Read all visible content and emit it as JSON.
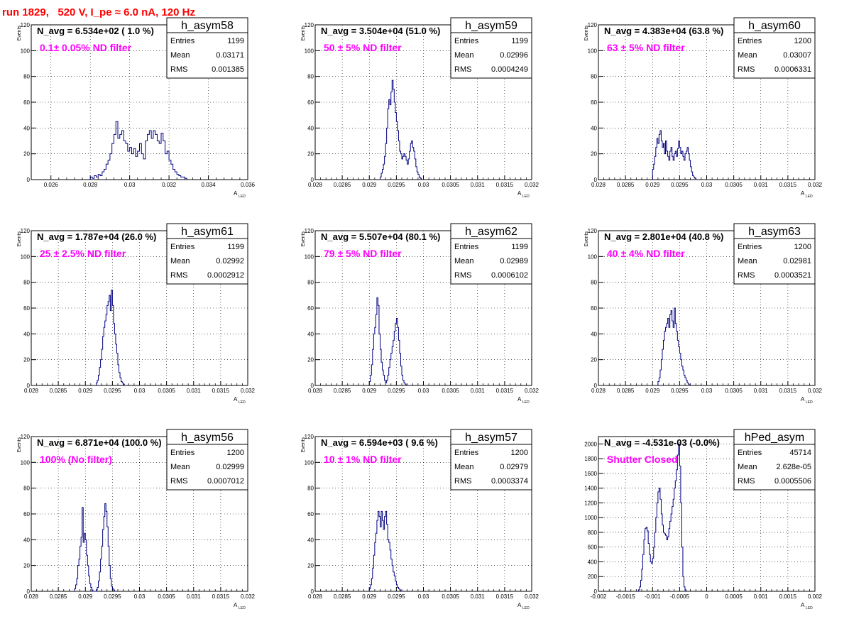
{
  "run_title": "run 1829,   520 V, I_pe ≈ 6.0 nA, 120 Hz",
  "colors": {
    "title": "#ff0000",
    "annotation": "#ff00ff",
    "histogram": "#000080",
    "grid": "#000000",
    "text": "#000000"
  },
  "chart_data": [
    {
      "type": "histogram",
      "name": "h_asym58",
      "navg": "N_avg = 6.534e+02 ( 1.0 %)",
      "annotation": "0.1± 0.05% ND filter",
      "stats": {
        "entries_label": "Entries",
        "entries": "1199",
        "mean_label": "Mean",
        "mean": "0.03171",
        "rms_label": "RMS",
        "rms": "0.001385"
      },
      "ylabel": "Events",
      "xlabel": "A",
      "xlabel_sub": "LED",
      "xlim": [
        0.025,
        0.036
      ],
      "ylim": [
        0,
        120
      ],
      "xticks": [
        0.026,
        0.028,
        0.03,
        0.032,
        0.034,
        0.036
      ],
      "xticklabels": [
        "0.026",
        "0.028",
        "0.03",
        "0.032",
        "0.034",
        "0.036"
      ],
      "yticks": [
        0,
        20,
        40,
        60,
        80,
        100,
        120
      ],
      "yticklabels": [
        "0",
        "20",
        "40",
        "60",
        "80",
        "100",
        "120"
      ],
      "grid": true,
      "bin_start": 0.028,
      "bin_width": 0.0001,
      "values": [
        2,
        1,
        3,
        2,
        4,
        3,
        6,
        8,
        12,
        15,
        20,
        28,
        35,
        45,
        32,
        35,
        38,
        30,
        28,
        22,
        25,
        20,
        24,
        18,
        22,
        28,
        20,
        16,
        30,
        35,
        38,
        32,
        38,
        35,
        30,
        28,
        36,
        30,
        20,
        22,
        15,
        12,
        8,
        6,
        4,
        3,
        2,
        2,
        1
      ]
    },
    {
      "type": "histogram",
      "name": "h_asym59",
      "navg": "N_avg = 3.504e+04 (51.0 %)",
      "annotation": "50 ± 5% ND filter",
      "stats": {
        "entries_label": "Entries",
        "entries": "1199",
        "mean_label": "Mean",
        "mean": "0.02996",
        "rms_label": "RMS",
        "rms": "0.0004249"
      },
      "ylabel": "Events",
      "xlabel": "A",
      "xlabel_sub": "LED",
      "xlim": [
        0.028,
        0.032
      ],
      "ylim": [
        0,
        120
      ],
      "xticks": [
        0.028,
        0.0285,
        0.029,
        0.0295,
        0.03,
        0.0305,
        0.031,
        0.0315,
        0.032
      ],
      "xticklabels": [
        "0.028",
        "0.0285",
        "0.029",
        "0.0295",
        "0.03",
        "0.0305",
        "0.031",
        "0.0315",
        "0.032"
      ],
      "yticks": [
        0,
        20,
        40,
        60,
        80,
        100,
        120
      ],
      "yticklabels": [
        "0",
        "20",
        "40",
        "60",
        "80",
        "100",
        "120"
      ],
      "grid": true,
      "bin_start": 0.0292,
      "bin_width": 2e-05,
      "values": [
        2,
        5,
        8,
        12,
        18,
        28,
        40,
        55,
        62,
        58,
        68,
        77,
        70,
        60,
        52,
        45,
        38,
        30,
        22,
        20,
        16,
        18,
        20,
        18,
        15,
        12,
        16,
        22,
        28,
        30,
        25,
        22,
        16,
        10,
        6,
        4,
        2,
        1
      ]
    },
    {
      "type": "histogram",
      "name": "h_asym60",
      "navg": "N_avg = 4.383e+04 (63.8 %)",
      "annotation": "63 ± 5% ND filter",
      "stats": {
        "entries_label": "Entries",
        "entries": "1200",
        "mean_label": "Mean",
        "mean": "0.03007",
        "rms_label": "RMS",
        "rms": "0.0006331"
      },
      "ylabel": "Events",
      "xlabel": "A",
      "xlabel_sub": "LED",
      "xlim": [
        0.028,
        0.032
      ],
      "ylim": [
        0,
        120
      ],
      "xticks": [
        0.028,
        0.0285,
        0.029,
        0.0295,
        0.03,
        0.0305,
        0.031,
        0.0315,
        0.032
      ],
      "xticklabels": [
        "0.028",
        "0.0285",
        "0.029",
        "0.0295",
        "0.03",
        "0.0305",
        "0.031",
        "0.0315",
        "0.032"
      ],
      "yticks": [
        0,
        20,
        40,
        60,
        80,
        100,
        120
      ],
      "yticklabels": [
        "0",
        "20",
        "40",
        "60",
        "80",
        "100",
        "120"
      ],
      "grid": true,
      "bin_start": 0.029,
      "bin_width": 2e-05,
      "values": [
        8,
        12,
        18,
        25,
        32,
        28,
        35,
        38,
        30,
        25,
        28,
        20,
        30,
        22,
        18,
        15,
        22,
        25,
        18,
        15,
        20,
        22,
        18,
        24,
        30,
        25,
        20,
        22,
        18,
        15,
        20,
        22,
        25,
        20,
        15,
        10,
        6,
        3,
        2,
        1
      ]
    },
    {
      "type": "histogram",
      "name": "h_asym61",
      "navg": "N_avg = 1.787e+04 (26.0 %)",
      "annotation": "25 ± 2.5% ND filter",
      "stats": {
        "entries_label": "Entries",
        "entries": "1199",
        "mean_label": "Mean",
        "mean": "0.02992",
        "rms_label": "RMS",
        "rms": "0.0002912"
      },
      "ylabel": "Events",
      "xlabel": "A",
      "xlabel_sub": "LED",
      "xlim": [
        0.028,
        0.032
      ],
      "ylim": [
        0,
        120
      ],
      "xticks": [
        0.028,
        0.0285,
        0.029,
        0.0295,
        0.03,
        0.0305,
        0.031,
        0.0315,
        0.032
      ],
      "xticklabels": [
        "0.028",
        "0.0285",
        "0.029",
        "0.0295",
        "0.03",
        "0.0305",
        "0.031",
        "0.0315",
        "0.032"
      ],
      "yticks": [
        0,
        20,
        40,
        60,
        80,
        100,
        120
      ],
      "yticklabels": [
        "0",
        "20",
        "40",
        "60",
        "80",
        "100",
        "120"
      ],
      "grid": true,
      "bin_start": 0.0292,
      "bin_width": 2e-05,
      "values": [
        2,
        4,
        8,
        14,
        20,
        28,
        38,
        45,
        50,
        55,
        62,
        65,
        70,
        58,
        74,
        62,
        48,
        40,
        32,
        25,
        16,
        10,
        6,
        3,
        2,
        1
      ]
    },
    {
      "type": "histogram",
      "name": "h_asym62",
      "navg": "N_avg = 5.507e+04 (80.1 %)",
      "annotation": "79 ± 5% ND filter",
      "stats": {
        "entries_label": "Entries",
        "entries": "1199",
        "mean_label": "Mean",
        "mean": "0.02989",
        "rms_label": "RMS",
        "rms": "0.0006102"
      },
      "ylabel": "Events",
      "xlabel": "A",
      "xlabel_sub": "LED",
      "xlim": [
        0.028,
        0.032
      ],
      "ylim": [
        0,
        120
      ],
      "xticks": [
        0.028,
        0.0285,
        0.029,
        0.0295,
        0.03,
        0.0305,
        0.031,
        0.0315,
        0.032
      ],
      "xticklabels": [
        "0.028",
        "0.0285",
        "0.029",
        "0.0295",
        "0.03",
        "0.0305",
        "0.031",
        "0.0315",
        "0.032"
      ],
      "yticks": [
        0,
        20,
        40,
        60,
        80,
        100,
        120
      ],
      "yticklabels": [
        "0",
        "20",
        "40",
        "60",
        "80",
        "100",
        "120"
      ],
      "grid": true,
      "bin_start": 0.029,
      "bin_width": 2e-05,
      "values": [
        3,
        8,
        16,
        28,
        40,
        45,
        55,
        68,
        62,
        40,
        28,
        18,
        12,
        8,
        4,
        2,
        4,
        8,
        14,
        20,
        25,
        30,
        35,
        42,
        48,
        52,
        45,
        35,
        25,
        15,
        8,
        4,
        2,
        1
      ]
    },
    {
      "type": "histogram",
      "name": "h_asym63",
      "navg": "N_avg = 2.801e+04 (40.8 %)",
      "annotation": "40 ± 4% ND filter",
      "stats": {
        "entries_label": "Entries",
        "entries": "1200",
        "mean_label": "Mean",
        "mean": "0.02981",
        "rms_label": "RMS",
        "rms": "0.0003521"
      },
      "ylabel": "Events",
      "xlabel": "A",
      "xlabel_sub": "LED",
      "xlim": [
        0.028,
        0.032
      ],
      "ylim": [
        0,
        120
      ],
      "xticks": [
        0.028,
        0.0285,
        0.029,
        0.0295,
        0.03,
        0.0305,
        0.031,
        0.0315,
        0.032
      ],
      "xticklabels": [
        "0.028",
        "0.0285",
        "0.029",
        "0.0295",
        "0.03",
        "0.0305",
        "0.031",
        "0.0315",
        "0.032"
      ],
      "yticks": [
        0,
        20,
        40,
        60,
        80,
        100,
        120
      ],
      "yticklabels": [
        "0",
        "20",
        "40",
        "60",
        "80",
        "100",
        "120"
      ],
      "grid": true,
      "bin_start": 0.0291,
      "bin_width": 2e-05,
      "values": [
        3,
        6,
        12,
        20,
        28,
        35,
        42,
        45,
        48,
        52,
        45,
        55,
        58,
        50,
        45,
        60,
        48,
        42,
        35,
        30,
        25,
        20,
        15,
        12,
        8,
        6,
        4,
        2,
        1
      ]
    },
    {
      "type": "histogram",
      "name": "h_asym56",
      "navg": "N_avg = 6.871e+04 (100.0 %)",
      "annotation": "100% (No filter)",
      "stats": {
        "entries_label": "Entries",
        "entries": "1200",
        "mean_label": "Mean",
        "mean": "0.02999",
        "rms_label": "RMS",
        "rms": "0.0007012"
      },
      "ylabel": "Events",
      "xlabel": "A",
      "xlabel_sub": "LED",
      "xlim": [
        0.028,
        0.032
      ],
      "ylim": [
        0,
        120
      ],
      "xticks": [
        0.028,
        0.0285,
        0.029,
        0.0295,
        0.03,
        0.0305,
        0.031,
        0.0315,
        0.032
      ],
      "xticklabels": [
        "0.028",
        "0.0285",
        "0.029",
        "0.0295",
        "0.03",
        "0.0305",
        "0.031",
        "0.0315",
        "0.032"
      ],
      "yticks": [
        0,
        20,
        40,
        60,
        80,
        100,
        120
      ],
      "yticklabels": [
        "0",
        "20",
        "40",
        "60",
        "80",
        "100",
        "120"
      ],
      "grid": true,
      "bin_start": 0.0288,
      "bin_width": 2e-05,
      "values": [
        2,
        5,
        10,
        20,
        25,
        35,
        42,
        65,
        38,
        45,
        40,
        28,
        20,
        12,
        6,
        3,
        1,
        0,
        0,
        0,
        1,
        3,
        8,
        15,
        25,
        35,
        48,
        58,
        68,
        62,
        50,
        35,
        20,
        10,
        4,
        2,
        1
      ]
    },
    {
      "type": "histogram",
      "name": "h_asym57",
      "navg": "N_avg = 6.594e+03 ( 9.6 %)",
      "annotation": "10 ± 1% ND filter",
      "stats": {
        "entries_label": "Entries",
        "entries": "1200",
        "mean_label": "Mean",
        "mean": "0.02979",
        "rms_label": "RMS",
        "rms": "0.0003374"
      },
      "ylabel": "Events",
      "xlabel": "A",
      "xlabel_sub": "LED",
      "xlim": [
        0.028,
        0.032
      ],
      "ylim": [
        0,
        120
      ],
      "xticks": [
        0.028,
        0.0285,
        0.029,
        0.0295,
        0.03,
        0.0305,
        0.031,
        0.0315,
        0.032
      ],
      "xticklabels": [
        "0.028",
        "0.0285",
        "0.029",
        "0.0295",
        "0.03",
        "0.0305",
        "0.031",
        "0.0315",
        "0.032"
      ],
      "yticks": [
        0,
        20,
        40,
        60,
        80,
        100,
        120
      ],
      "yticklabels": [
        "0",
        "20",
        "40",
        "60",
        "80",
        "100",
        "120"
      ],
      "grid": true,
      "bin_start": 0.029,
      "bin_width": 2e-05,
      "values": [
        2,
        5,
        10,
        18,
        28,
        38,
        45,
        55,
        62,
        58,
        50,
        62,
        55,
        48,
        58,
        62,
        52,
        40,
        38,
        32,
        25,
        20,
        15,
        12,
        8,
        5,
        3,
        2,
        1
      ]
    },
    {
      "type": "histogram",
      "name": "hPed_asym",
      "navg": "N_avg = -4.531e-03 (-0.0%)",
      "annotation": "Shutter Closed",
      "stats": {
        "entries_label": "Entries",
        "entries": "45714",
        "mean_label": "Mean",
        "mean": "2.628e-05",
        "rms_label": "RMS",
        "rms": "0.0005506"
      },
      "ylabel": "",
      "xlabel": "A",
      "xlabel_sub": "LED",
      "xlim": [
        -0.002,
        0.002
      ],
      "ylim": [
        0,
        2100
      ],
      "xticks": [
        -0.002,
        -0.0015,
        -0.001,
        -0.0005,
        0,
        0.0005,
        0.001,
        0.0015,
        0.002
      ],
      "xticklabels": [
        "-0.002",
        "-0.0015",
        "-0.001",
        "-0.0005",
        "0",
        "0.0005",
        "0.001",
        "0.0015",
        "0.002"
      ],
      "yticks": [
        0,
        200,
        400,
        600,
        800,
        1000,
        1200,
        1400,
        1600,
        1800,
        2000
      ],
      "yticklabels": [
        "0",
        "200",
        "400",
        "600",
        "800",
        "1000",
        "1200",
        "1400",
        "1600",
        "1800",
        "2000"
      ],
      "grid": true,
      "bin_start": -0.00126,
      "bin_width": 2e-05,
      "values": [
        20,
        60,
        150,
        300,
        500,
        700,
        850,
        870,
        820,
        650,
        500,
        400,
        380,
        450,
        600,
        800,
        1000,
        1200,
        1350,
        1400,
        1250,
        1050,
        900,
        800,
        780,
        760,
        700,
        740,
        850,
        950,
        1050,
        1150,
        1250,
        1400,
        1500,
        1650,
        1850,
        2000,
        1700,
        1200,
        600,
        200,
        60,
        20
      ]
    }
  ]
}
